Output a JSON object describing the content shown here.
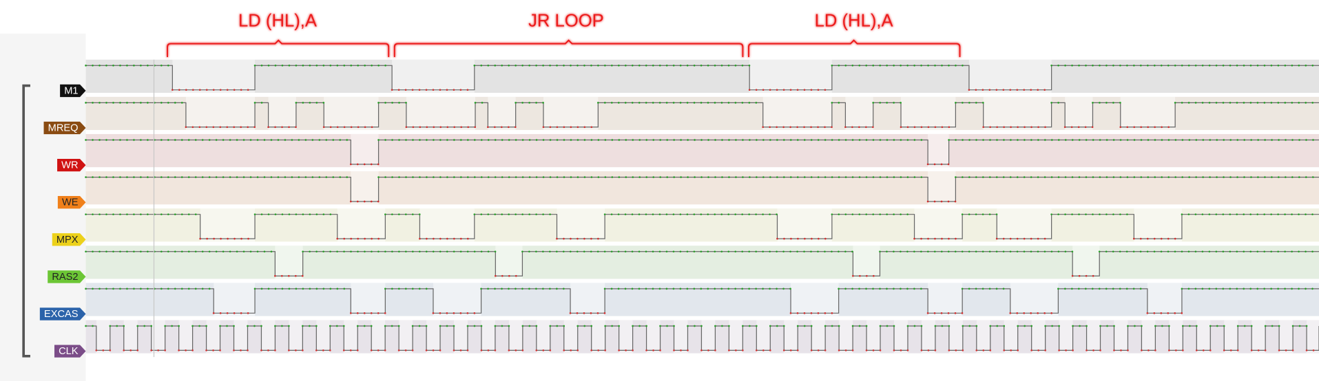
{
  "annotations": [
    "LD (HL),A",
    "JR LOOP",
    "LD (HL),A"
  ],
  "channels": [
    "M1",
    "MREQ",
    "WR",
    "WE",
    "MPX",
    "RAS2",
    "EXCAS",
    "CLK"
  ]
}
